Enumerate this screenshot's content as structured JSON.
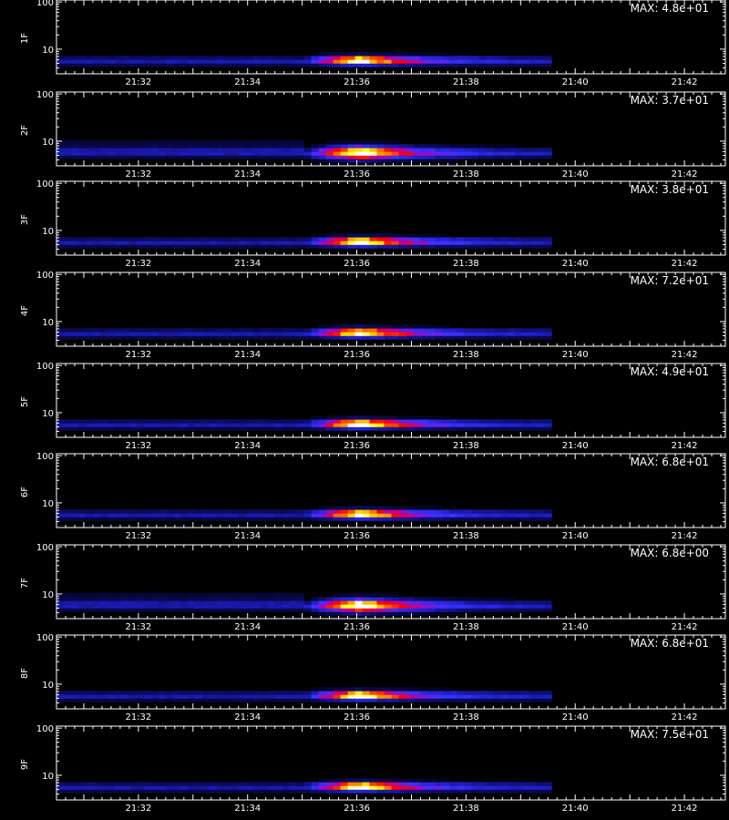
{
  "chart_data": {
    "type": "heatmap",
    "x_tick_labels": [
      "21:32",
      "21:34",
      "21:36",
      "21:38",
      "21:40",
      "21:42"
    ],
    "x_range": [
      "21:30:30",
      "21:42:45"
    ],
    "y_tick_labels": [
      "10",
      "100"
    ],
    "y_scale": "log",
    "y_range": [
      3,
      110
    ],
    "xlabel": "",
    "colormap": [
      "#000000",
      "#0a0a5a",
      "#1e1ec8",
      "#3c32ff",
      "#b400b4",
      "#ff0000",
      "#ff8c00",
      "#ffff00",
      "#ffffff"
    ],
    "panels": [
      {
        "label": "1F",
        "max_text": "MAX: 4.8e+01",
        "max": 48,
        "data_end": "21:39:30"
      },
      {
        "label": "2F",
        "max_text": "MAX: 3.7e+01",
        "max": 37,
        "data_end": "21:39:30"
      },
      {
        "label": "3F",
        "max_text": "MAX: 3.8e+01",
        "max": 38,
        "data_end": "21:39:30"
      },
      {
        "label": "4F",
        "max_text": "MAX: 7.2e+01",
        "max": 72,
        "data_end": "21:39:30"
      },
      {
        "label": "5F",
        "max_text": "MAX: 4.9e+01",
        "max": 49,
        "data_end": "21:39:30"
      },
      {
        "label": "6F",
        "max_text": "MAX: 6.8e+01",
        "max": 68,
        "data_end": "21:39:30"
      },
      {
        "label": "7F",
        "max_text": "MAX: 6.8e+00",
        "max": 6.8,
        "data_end": "21:39:30"
      },
      {
        "label": "8F",
        "max_text": "MAX: 6.8e+01",
        "max": 68,
        "data_end": "21:39:30"
      },
      {
        "label": "9F",
        "max_text": "MAX: 7.5e+01",
        "max": 75,
        "data_end": "21:39:30"
      }
    ]
  }
}
